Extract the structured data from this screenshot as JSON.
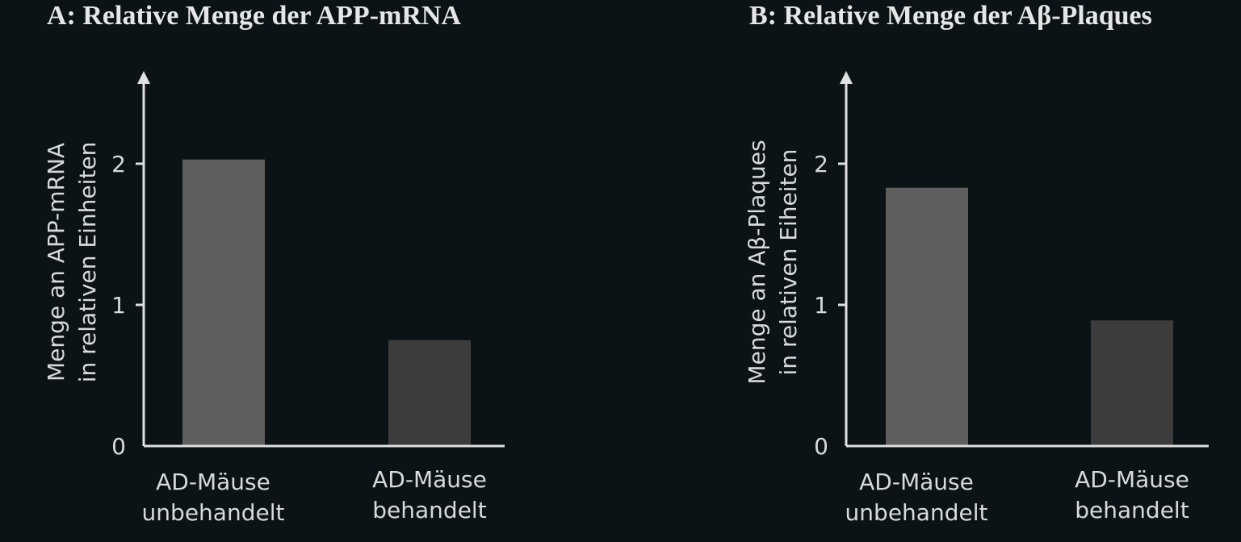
{
  "chart_data": [
    {
      "type": "bar",
      "title": "A: Relative Menge der APP-mRNA",
      "ylabel": [
        "Menge an APP-mRNA",
        "in relativen Einheiten"
      ],
      "xlabel": "",
      "categories": [
        [
          "AD-Mäuse",
          "unbehandelt"
        ],
        [
          "AD-Mäuse",
          "behandelt"
        ]
      ],
      "values": [
        2.03,
        0.75
      ],
      "bar_colors": [
        "#5f5f5f",
        "#3c3c3c"
      ],
      "yticks": [
        "0",
        "1",
        "2"
      ],
      "ylim": [
        0,
        2.6
      ],
      "grid": false
    },
    {
      "type": "bar",
      "title": "B: Relative Menge der Aβ-Plaques",
      "ylabel": [
        "Menge an Aβ-Plaques",
        "in relativen Eiheiten"
      ],
      "xlabel": "",
      "categories": [
        [
          "AD-Mäuse",
          "unbehandelt"
        ],
        [
          "AD-Mäuse",
          "behandelt"
        ]
      ],
      "values": [
        1.83,
        0.89
      ],
      "bar_colors": [
        "#5f5f5f",
        "#3c3c3c"
      ],
      "yticks": [
        "0",
        "1",
        "2"
      ],
      "ylim": [
        0,
        2.6
      ],
      "grid": false
    }
  ],
  "colors": {
    "background": "#0b1316",
    "axis": "#e0e0e0",
    "text": "#d9d9d9"
  }
}
